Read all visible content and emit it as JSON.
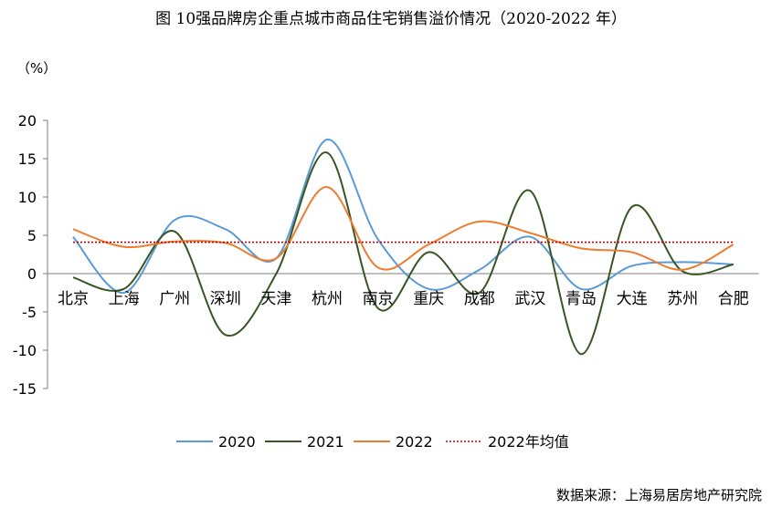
{
  "title": "图 10强品牌房企重点城市商品住宅销售溢价情况（2020-2022 年）",
  "source": "数据来源：上海易居房地产研究院",
  "chart_data": {
    "type": "line",
    "title": "图 10强品牌房企重点城市商品住宅销售溢价情况（2020-2022 年）",
    "ylabel": "（%）",
    "xlabel": "",
    "ylim": [
      -15,
      20
    ],
    "yticks": [
      20,
      15,
      10,
      5,
      0,
      -5,
      -10,
      -15
    ],
    "smooth": true,
    "grid": false,
    "legend_position": "bottom",
    "categories": [
      "北京",
      "上海",
      "广州",
      "深圳",
      "天津",
      "杭州",
      "南京",
      "重庆",
      "成都",
      "武汉",
      "青岛",
      "大连",
      "苏州",
      "合肥"
    ],
    "series": [
      {
        "name": "2020",
        "color": "#5b9bd5",
        "style": "solid",
        "values": [
          4.8,
          -2.5,
          7.0,
          5.8,
          2.0,
          17.5,
          4.5,
          -2.0,
          0.5,
          4.8,
          -2.0,
          1.0,
          1.5,
          1.2
        ]
      },
      {
        "name": "2021",
        "color": "#375623",
        "style": "solid",
        "values": [
          -0.5,
          -2.0,
          5.5,
          -8.0,
          0.0,
          15.8,
          -4.5,
          2.8,
          -2.5,
          10.8,
          -10.5,
          8.7,
          0.3,
          1.2
        ]
      },
      {
        "name": "2022",
        "color": "#ed7d31",
        "style": "solid",
        "values": [
          5.8,
          3.5,
          4.2,
          4.0,
          2.0,
          11.3,
          0.8,
          3.8,
          6.8,
          5.3,
          3.3,
          2.8,
          0.5,
          3.8
        ]
      },
      {
        "name": "2022年均值",
        "color": "#c00000",
        "style": "dotted",
        "values": [
          4.1,
          4.1,
          4.1,
          4.1,
          4.1,
          4.1,
          4.1,
          4.1,
          4.1,
          4.1,
          4.1,
          4.1,
          4.1,
          4.1
        ]
      }
    ]
  }
}
